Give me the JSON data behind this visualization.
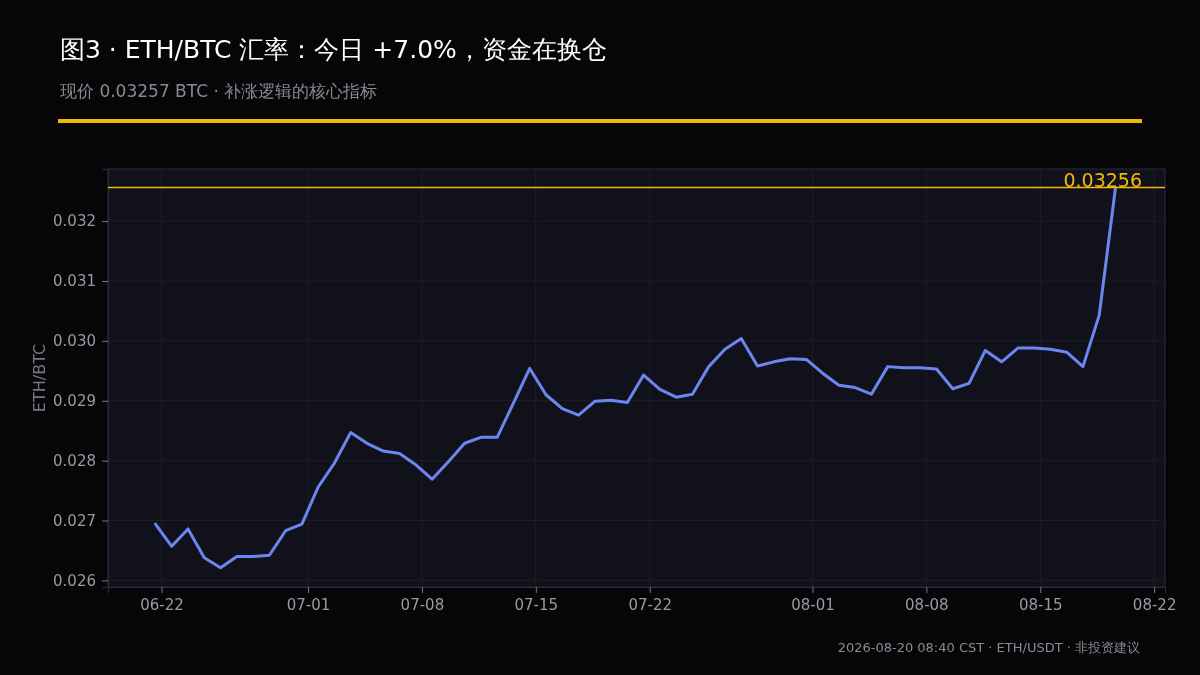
{
  "chart_data": {
    "type": "line",
    "title": "图3 · ETH/BTC 汇率：今日 +7.0%，资金在换仓",
    "subtitle": "现价 0.03257 BTC · 补涨逻辑的核心指标",
    "ylabel": "ETH/BTC",
    "annotations": [
      "2026-08-20 08:40 CST · ETH/USDT · 非投资建议"
    ],
    "x": [
      "2026-06-21T15:00",
      "2026-06-22T15:00",
      "2026-06-23T15:00",
      "2026-06-24T15:00",
      "2026-06-25T15:00",
      "2026-06-26T15:00",
      "2026-06-27T15:00",
      "2026-06-28T15:00",
      "2026-06-29T15:00",
      "2026-06-30T15:00",
      "2026-07-01T15:00",
      "2026-07-02T15:00",
      "2026-07-03T15:00",
      "2026-07-04T15:00",
      "2026-07-05T15:00",
      "2026-07-06T15:00",
      "2026-07-07T15:00",
      "2026-07-08T15:00",
      "2026-07-09T15:00",
      "2026-07-10T15:00",
      "2026-07-11T15:00",
      "2026-07-12T15:00",
      "2026-07-13T15:00",
      "2026-07-14T15:00",
      "2026-07-15T15:00",
      "2026-07-16T15:00",
      "2026-07-17T15:00",
      "2026-07-18T15:00",
      "2026-07-19T15:00",
      "2026-07-20T15:00",
      "2026-07-21T15:00",
      "2026-07-22T15:00",
      "2026-07-23T15:00",
      "2026-07-24T15:00",
      "2026-07-25T15:00",
      "2026-07-26T15:00",
      "2026-07-27T15:00",
      "2026-07-28T15:00",
      "2026-07-29T15:00",
      "2026-07-30T15:00",
      "2026-07-31T15:00",
      "2026-08-01T15:00",
      "2026-08-02T15:00",
      "2026-08-03T15:00",
      "2026-08-04T15:00",
      "2026-08-05T15:00",
      "2026-08-06T15:00",
      "2026-08-07T15:00",
      "2026-08-08T15:00",
      "2026-08-09T15:00",
      "2026-08-10T15:00",
      "2026-08-11T15:00",
      "2026-08-12T15:00",
      "2026-08-13T15:00",
      "2026-08-14T15:00",
      "2026-08-15T15:00",
      "2026-08-16T15:00",
      "2026-08-17T15:00",
      "2026-08-18T15:00",
      "2026-08-19T15:00"
    ],
    "series": [
      {
        "color": "#6b87ef",
        "values": [
          0.02694,
          0.02657,
          0.02686,
          0.02638,
          0.02621,
          0.0264,
          0.0264,
          0.02642,
          0.02683,
          0.02694,
          0.02756,
          0.02796,
          0.02847,
          0.02829,
          0.02816,
          0.02812,
          0.02793,
          0.02769,
          0.02798,
          0.02829,
          0.02839,
          0.02839,
          0.02896,
          0.02954,
          0.0291,
          0.02887,
          0.02876,
          0.02899,
          0.02901,
          0.02897,
          0.02943,
          0.02919,
          0.02906,
          0.02911,
          0.02957,
          0.02986,
          0.03004,
          0.02958,
          0.02965,
          0.0297,
          0.02969,
          0.02946,
          0.02926,
          0.02922,
          0.02911,
          0.02957,
          0.02955,
          0.02955,
          0.02953,
          0.0292,
          0.02929,
          0.02984,
          0.02965,
          0.02988,
          0.02988,
          0.02986,
          0.02981,
          0.02957,
          0.03043,
          0.03256
        ]
      }
    ],
    "xlim": [
      "2026-06-18T17:00",
      "2026-08-22T16:00"
    ],
    "xticks": [
      {
        "value": "2026-06-22",
        "label": "06-22"
      },
      {
        "value": "2026-07-01",
        "label": "07-01"
      },
      {
        "value": "2026-07-08",
        "label": "07-08"
      },
      {
        "value": "2026-07-15",
        "label": "07-15"
      },
      {
        "value": "2026-07-22",
        "label": "07-22"
      },
      {
        "value": "2026-08-01",
        "label": "08-01"
      },
      {
        "value": "2026-08-08",
        "label": "08-08"
      },
      {
        "value": "2026-08-15",
        "label": "08-15"
      },
      {
        "value": "2026-08-22",
        "label": "08-22"
      }
    ],
    "ylim": [
      0.02589,
      0.03287
    ],
    "yticks": [
      0.026,
      0.027,
      0.028,
      0.029,
      {
        "value": 0.03,
        "label": "0.030"
      },
      0.031,
      0.032
    ],
    "ref_lines": [
      {
        "axis": "y",
        "value": 0.03256,
        "label": "0.03256",
        "color": "#f0b90b"
      }
    ],
    "grid": true,
    "marker": "none",
    "line_style": "solid"
  }
}
